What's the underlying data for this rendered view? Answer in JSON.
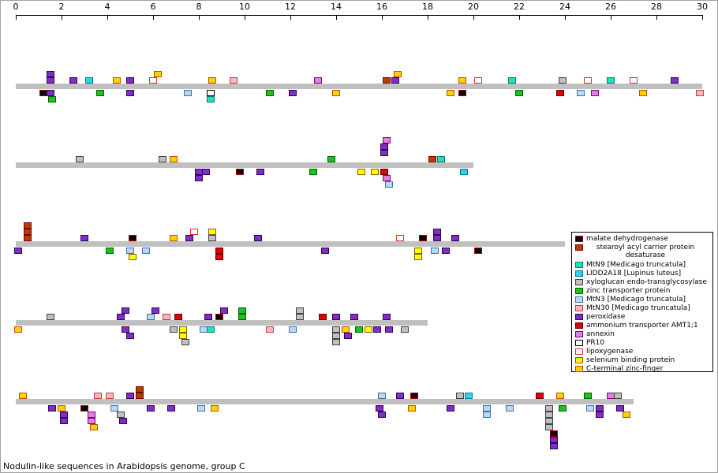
{
  "axis": {
    "ticks": [
      "0",
      "2",
      "4",
      "6",
      "8",
      "10",
      "12",
      "14",
      "16",
      "18",
      "20",
      "22",
      "24",
      "26",
      "28",
      "30"
    ]
  },
  "caption": "Nodulin-like sequences in Arabidopsis genome, group C",
  "legend": [
    {
      "label": "malate dehydrogenase",
      "fill": "#000000",
      "border": "#b00000"
    },
    {
      "label": "stearoyl acyl carrier protein desaturase",
      "fill": "#b04000",
      "border": "#800000"
    },
    {
      "label": "MtN9 [Medicago truncatula]",
      "fill": "#20e0c0",
      "border": "#008060"
    },
    {
      "label": "LIDD2A18 [Lupinus luteus]",
      "fill": "#30d0f0",
      "border": "#008090"
    },
    {
      "label": "xyloglucan endo-transglycosylase",
      "fill": "#c0c0c0",
      "border": "#404040"
    },
    {
      "label": "zinc transporter protein",
      "fill": "#20c020",
      "border": "#006000"
    },
    {
      "label": "MtN3 [Medicago truncatula]",
      "fill": "#b8d8f8",
      "border": "#4070a0"
    },
    {
      "label": "MtN30 [Medicago truncatula]",
      "fill": "#f8b8b8",
      "border": "#c04040"
    },
    {
      "label": "peroxidase",
      "fill": "#8030c0",
      "border": "#300060"
    },
    {
      "label": "ammonium transporter AMT1;1",
      "fill": "#e00000",
      "border": "#600000"
    },
    {
      "label": "annexin",
      "fill": "#e080e0",
      "border": "#800080"
    },
    {
      "label": "PR10",
      "fill": "#ffffff",
      "border": "#000000"
    },
    {
      "label": "lipoxygenase",
      "fill": "#ffffff",
      "border": "#e03030"
    },
    {
      "label": "selenium binding protein",
      "fill": "#ffff00",
      "border": "#806000"
    },
    {
      "label": "C-terminal zinc-finger",
      "fill": "#ffd000",
      "border": "#c05000"
    }
  ],
  "chromosomes": [
    {
      "length": 30,
      "hits": [
        {
          "pos": 1.5,
          "lane": -2,
          "t": 8
        },
        {
          "pos": 1.5,
          "lane": -1,
          "t": 8
        },
        {
          "pos": 2.5,
          "lane": -1,
          "t": 8
        },
        {
          "pos": 3.2,
          "lane": -1,
          "t": 3
        },
        {
          "pos": 4.4,
          "lane": -1,
          "t": 14
        },
        {
          "pos": 5.0,
          "lane": -1,
          "t": 8
        },
        {
          "pos": 6.2,
          "lane": -2,
          "t": 14
        },
        {
          "pos": 6.0,
          "lane": -1,
          "t": 12
        },
        {
          "pos": 8.6,
          "lane": -1,
          "t": 14
        },
        {
          "pos": 9.5,
          "lane": -1,
          "t": 7
        },
        {
          "pos": 13.2,
          "lane": -1,
          "t": 10
        },
        {
          "pos": 16.2,
          "lane": -1,
          "t": 1
        },
        {
          "pos": 16.7,
          "lane": -2,
          "t": 14
        },
        {
          "pos": 16.6,
          "lane": -1,
          "t": 8
        },
        {
          "pos": 19.5,
          "lane": -1,
          "t": 14
        },
        {
          "pos": 20.2,
          "lane": -1,
          "t": 12
        },
        {
          "pos": 21.7,
          "lane": -1,
          "t": 2
        },
        {
          "pos": 23.9,
          "lane": -1,
          "t": 4
        },
        {
          "pos": 25.0,
          "lane": -1,
          "t": 12
        },
        {
          "pos": 26.0,
          "lane": -1,
          "t": 2
        },
        {
          "pos": 27.0,
          "lane": -1,
          "t": 12
        },
        {
          "pos": 28.8,
          "lane": -1,
          "t": 8
        },
        {
          "pos": 1.2,
          "lane": 1,
          "t": 0
        },
        {
          "pos": 1.5,
          "lane": 1,
          "t": 8
        },
        {
          "pos": 1.6,
          "lane": 2,
          "t": 5
        },
        {
          "pos": 3.7,
          "lane": 1,
          "t": 5
        },
        {
          "pos": 5.0,
          "lane": 1,
          "t": 8
        },
        {
          "pos": 7.5,
          "lane": 1,
          "t": 6
        },
        {
          "pos": 8.5,
          "lane": 1,
          "t": 11
        },
        {
          "pos": 8.5,
          "lane": 2,
          "t": 2
        },
        {
          "pos": 11.1,
          "lane": 1,
          "t": 5
        },
        {
          "pos": 12.1,
          "lane": 1,
          "t": 8
        },
        {
          "pos": 14.0,
          "lane": 1,
          "t": 14
        },
        {
          "pos": 19.0,
          "lane": 1,
          "t": 14
        },
        {
          "pos": 19.5,
          "lane": 1,
          "t": 0
        },
        {
          "pos": 22.0,
          "lane": 1,
          "t": 5
        },
        {
          "pos": 23.8,
          "lane": 1,
          "t": 9
        },
        {
          "pos": 24.7,
          "lane": 1,
          "t": 6
        },
        {
          "pos": 25.3,
          "lane": 1,
          "t": 10
        },
        {
          "pos": 27.4,
          "lane": 1,
          "t": 14
        },
        {
          "pos": 29.9,
          "lane": 1,
          "t": 7
        }
      ]
    },
    {
      "length": 20,
      "hits": [
        {
          "pos": 2.8,
          "lane": -1,
          "t": 4
        },
        {
          "pos": 6.4,
          "lane": -1,
          "t": 4
        },
        {
          "pos": 6.9,
          "lane": -1,
          "t": 14
        },
        {
          "pos": 13.8,
          "lane": -1,
          "t": 5
        },
        {
          "pos": 16.2,
          "lane": -4,
          "t": 10
        },
        {
          "pos": 16.1,
          "lane": -3,
          "t": 8
        },
        {
          "pos": 16.1,
          "lane": -2,
          "t": 8
        },
        {
          "pos": 18.2,
          "lane": -1,
          "t": 1
        },
        {
          "pos": 18.6,
          "lane": -1,
          "t": 2
        },
        {
          "pos": 8.0,
          "lane": 1,
          "t": 8
        },
        {
          "pos": 8.3,
          "lane": 1,
          "t": 8
        },
        {
          "pos": 8.0,
          "lane": 2,
          "t": 8
        },
        {
          "pos": 9.8,
          "lane": 1,
          "t": 0
        },
        {
          "pos": 10.7,
          "lane": 1,
          "t": 8
        },
        {
          "pos": 13.0,
          "lane": 1,
          "t": 5
        },
        {
          "pos": 15.1,
          "lane": 1,
          "t": 13
        },
        {
          "pos": 15.7,
          "lane": 1,
          "t": 13
        },
        {
          "pos": 16.1,
          "lane": 1,
          "t": 9
        },
        {
          "pos": 16.2,
          "lane": 2,
          "t": 10
        },
        {
          "pos": 16.3,
          "lane": 3,
          "t": 6
        },
        {
          "pos": 19.6,
          "lane": 1,
          "t": 3
        }
      ]
    },
    {
      "length": 24,
      "hits": [
        {
          "pos": 0.5,
          "lane": -3,
          "t": 1
        },
        {
          "pos": 0.5,
          "lane": -2,
          "t": 1
        },
        {
          "pos": 0.5,
          "lane": -1,
          "t": 1
        },
        {
          "pos": 3.0,
          "lane": -1,
          "t": 8
        },
        {
          "pos": 5.1,
          "lane": -1,
          "t": 0
        },
        {
          "pos": 6.9,
          "lane": -1,
          "t": 14
        },
        {
          "pos": 7.8,
          "lane": -2,
          "t": 12
        },
        {
          "pos": 7.6,
          "lane": -1,
          "t": 8
        },
        {
          "pos": 8.6,
          "lane": -2,
          "t": 13
        },
        {
          "pos": 8.6,
          "lane": -1,
          "t": 4
        },
        {
          "pos": 10.6,
          "lane": -1,
          "t": 8
        },
        {
          "pos": 16.8,
          "lane": -1,
          "t": 12
        },
        {
          "pos": 17.8,
          "lane": -1,
          "t": 0
        },
        {
          "pos": 18.4,
          "lane": -2,
          "t": 8
        },
        {
          "pos": 18.4,
          "lane": -1,
          "t": 8
        },
        {
          "pos": 19.2,
          "lane": -1,
          "t": 8
        },
        {
          "pos": 0.1,
          "lane": 1,
          "t": 8
        },
        {
          "pos": 4.1,
          "lane": 1,
          "t": 5
        },
        {
          "pos": 5.0,
          "lane": 1,
          "t": 6
        },
        {
          "pos": 5.1,
          "lane": 2,
          "t": 13
        },
        {
          "pos": 5.7,
          "lane": 1,
          "t": 6
        },
        {
          "pos": 8.9,
          "lane": 1,
          "t": 9
        },
        {
          "pos": 8.9,
          "lane": 2,
          "t": 9
        },
        {
          "pos": 13.5,
          "lane": 1,
          "t": 8
        },
        {
          "pos": 17.6,
          "lane": 1,
          "t": 13
        },
        {
          "pos": 17.6,
          "lane": 2,
          "t": 13
        },
        {
          "pos": 18.3,
          "lane": 1,
          "t": 6
        },
        {
          "pos": 18.8,
          "lane": 1,
          "t": 8
        },
        {
          "pos": 20.2,
          "lane": 1,
          "t": 0
        }
      ]
    },
    {
      "length": 18,
      "hits": [
        {
          "pos": 1.5,
          "lane": -1,
          "t": 4
        },
        {
          "pos": 4.8,
          "lane": -2,
          "t": 8
        },
        {
          "pos": 4.6,
          "lane": -1,
          "t": 8
        },
        {
          "pos": 6.1,
          "lane": -2,
          "t": 8
        },
        {
          "pos": 5.9,
          "lane": -1,
          "t": 6
        },
        {
          "pos": 6.6,
          "lane": -1,
          "t": 7
        },
        {
          "pos": 7.1,
          "lane": -1,
          "t": 9
        },
        {
          "pos": 8.4,
          "lane": -1,
          "t": 8
        },
        {
          "pos": 9.1,
          "lane": -2,
          "t": 8
        },
        {
          "pos": 8.9,
          "lane": -1,
          "t": 0
        },
        {
          "pos": 9.9,
          "lane": -2,
          "t": 5
        },
        {
          "pos": 9.9,
          "lane": -1,
          "t": 5
        },
        {
          "pos": 12.4,
          "lane": -2,
          "t": 4
        },
        {
          "pos": 12.4,
          "lane": -1,
          "t": 4
        },
        {
          "pos": 13.4,
          "lane": -1,
          "t": 9
        },
        {
          "pos": 14.0,
          "lane": -1,
          "t": 8
        },
        {
          "pos": 14.8,
          "lane": -1,
          "t": 8
        },
        {
          "pos": 16.2,
          "lane": -1,
          "t": 8
        },
        {
          "pos": 0.1,
          "lane": 1,
          "t": 14
        },
        {
          "pos": 4.8,
          "lane": 1,
          "t": 8
        },
        {
          "pos": 5.0,
          "lane": 2,
          "t": 8
        },
        {
          "pos": 6.9,
          "lane": 1,
          "t": 4
        },
        {
          "pos": 7.3,
          "lane": 1,
          "t": 13
        },
        {
          "pos": 7.3,
          "lane": 2,
          "t": 13
        },
        {
          "pos": 7.4,
          "lane": 3,
          "t": 4
        },
        {
          "pos": 8.2,
          "lane": 1,
          "t": 6
        },
        {
          "pos": 8.5,
          "lane": 1,
          "t": 2
        },
        {
          "pos": 11.1,
          "lane": 1,
          "t": 7
        },
        {
          "pos": 12.1,
          "lane": 1,
          "t": 6
        },
        {
          "pos": 14.0,
          "lane": 1,
          "t": 4
        },
        {
          "pos": 14.0,
          "lane": 2,
          "t": 4
        },
        {
          "pos": 14.0,
          "lane": 3,
          "t": 4
        },
        {
          "pos": 14.4,
          "lane": 1,
          "t": 14
        },
        {
          "pos": 14.5,
          "lane": 2,
          "t": 8
        },
        {
          "pos": 15.0,
          "lane": 1,
          "t": 5
        },
        {
          "pos": 15.4,
          "lane": 1,
          "t": 13
        },
        {
          "pos": 15.8,
          "lane": 1,
          "t": 8
        },
        {
          "pos": 16.3,
          "lane": 1,
          "t": 8
        },
        {
          "pos": 17.0,
          "lane": 1,
          "t": 4
        }
      ]
    },
    {
      "length": 27,
      "hits": [
        {
          "pos": 0.3,
          "lane": -1,
          "t": 14
        },
        {
          "pos": 3.6,
          "lane": -1,
          "t": 7
        },
        {
          "pos": 4.1,
          "lane": -1,
          "t": 7
        },
        {
          "pos": 5.0,
          "lane": -1,
          "t": 8
        },
        {
          "pos": 5.4,
          "lane": -2,
          "t": 1
        },
        {
          "pos": 5.4,
          "lane": -1,
          "t": 1
        },
        {
          "pos": 16.0,
          "lane": -1,
          "t": 6
        },
        {
          "pos": 16.8,
          "lane": -1,
          "t": 8
        },
        {
          "pos": 17.4,
          "lane": -1,
          "t": 0
        },
        {
          "pos": 19.4,
          "lane": -1,
          "t": 4
        },
        {
          "pos": 19.8,
          "lane": -1,
          "t": 3
        },
        {
          "pos": 22.9,
          "lane": -1,
          "t": 9
        },
        {
          "pos": 23.8,
          "lane": -1,
          "t": 14
        },
        {
          "pos": 25.0,
          "lane": -1,
          "t": 5
        },
        {
          "pos": 26.0,
          "lane": -1,
          "t": 10
        },
        {
          "pos": 26.3,
          "lane": -1,
          "t": 4
        },
        {
          "pos": 1.6,
          "lane": 1,
          "t": 8
        },
        {
          "pos": 2.0,
          "lane": 1,
          "t": 14
        },
        {
          "pos": 2.1,
          "lane": 2,
          "t": 8
        },
        {
          "pos": 2.1,
          "lane": 3,
          "t": 8
        },
        {
          "pos": 3.0,
          "lane": 1,
          "t": 0
        },
        {
          "pos": 3.3,
          "lane": 2,
          "t": 10
        },
        {
          "pos": 3.3,
          "lane": 3,
          "t": 10
        },
        {
          "pos": 3.4,
          "lane": 4,
          "t": 14
        },
        {
          "pos": 4.3,
          "lane": 1,
          "t": 6
        },
        {
          "pos": 4.6,
          "lane": 2,
          "t": 4
        },
        {
          "pos": 4.7,
          "lane": 3,
          "t": 8
        },
        {
          "pos": 5.9,
          "lane": 1,
          "t": 8
        },
        {
          "pos": 6.8,
          "lane": 1,
          "t": 8
        },
        {
          "pos": 8.1,
          "lane": 1,
          "t": 6
        },
        {
          "pos": 8.7,
          "lane": 1,
          "t": 14
        },
        {
          "pos": 15.9,
          "lane": 1,
          "t": 8
        },
        {
          "pos": 16.0,
          "lane": 2,
          "t": 8
        },
        {
          "pos": 17.3,
          "lane": 1,
          "t": 14
        },
        {
          "pos": 19.0,
          "lane": 1,
          "t": 8
        },
        {
          "pos": 20.6,
          "lane": 1,
          "t": 6
        },
        {
          "pos": 20.6,
          "lane": 2,
          "t": 6
        },
        {
          "pos": 21.6,
          "lane": 1,
          "t": 6
        },
        {
          "pos": 23.3,
          "lane": 1,
          "t": 4
        },
        {
          "pos": 23.3,
          "lane": 2,
          "t": 4
        },
        {
          "pos": 23.3,
          "lane": 3,
          "t": 4
        },
        {
          "pos": 23.3,
          "lane": 4,
          "t": 4
        },
        {
          "pos": 23.5,
          "lane": 5,
          "t": 0
        },
        {
          "pos": 23.5,
          "lane": 6,
          "t": 8
        },
        {
          "pos": 23.5,
          "lane": 7,
          "t": 8
        },
        {
          "pos": 23.9,
          "lane": 1,
          "t": 5
        },
        {
          "pos": 25.1,
          "lane": 1,
          "t": 6
        },
        {
          "pos": 25.5,
          "lane": 1,
          "t": 8
        },
        {
          "pos": 25.5,
          "lane": 2,
          "t": 8
        },
        {
          "pos": 26.4,
          "lane": 1,
          "t": 8
        },
        {
          "pos": 26.7,
          "lane": 2,
          "t": 14
        }
      ]
    }
  ]
}
